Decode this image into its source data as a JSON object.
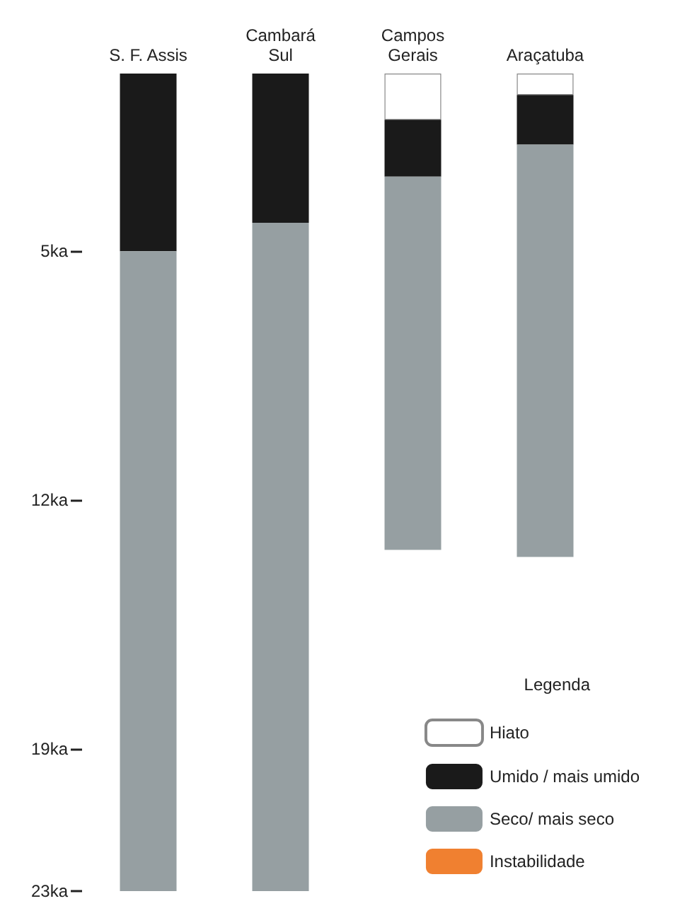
{
  "chart_data": {
    "type": "bar",
    "stacked": true,
    "legend_title": "Legenda",
    "legend": "bottom right",
    "grid": false,
    "categories": [
      "S. F. Assis",
      "Cambará\nSul",
      "Campos\nGerais",
      "Araçatuba"
    ],
    "series": [
      {
        "name": "Hiato",
        "color": "#ffffff",
        "values": [
          null,
          null,
          1.3,
          0.6
        ]
      },
      {
        "name": "Umido / mais umido",
        "color": "#1a1a1a",
        "values": [
          5,
          4.2,
          1.6,
          1.4
        ]
      },
      {
        "name": "Seco/ mais seco",
        "color": "#969fa2",
        "values": [
          18,
          18.8,
          10.5,
          11.6
        ]
      },
      {
        "name": "Instabilidade",
        "color": "#f08030",
        "values": [
          null,
          null,
          null,
          null
        ]
      }
    ],
    "ylim": [
      23,
      0
    ],
    "yticks": [
      {
        "value": 5,
        "label": "5ka"
      },
      {
        "value": 12,
        "label": "12ka"
      },
      {
        "value": 19,
        "label": "19ka"
      },
      {
        "value": 23,
        "label": "23ka"
      }
    ]
  }
}
